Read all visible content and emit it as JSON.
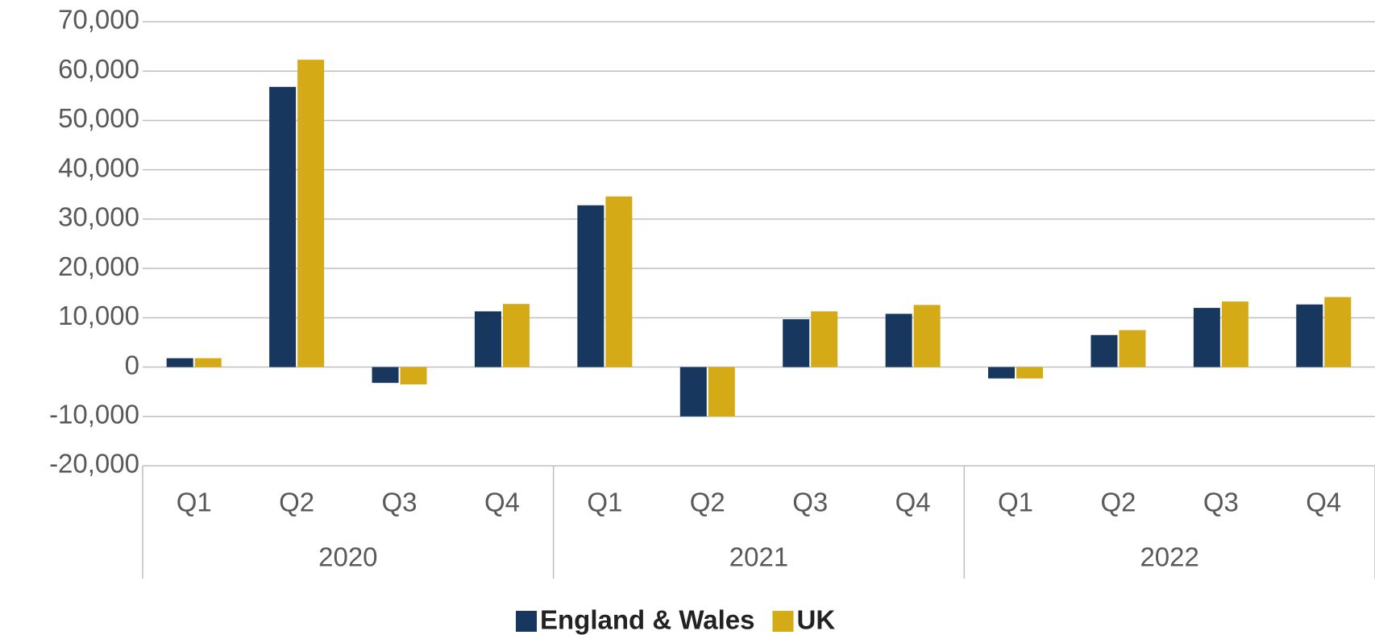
{
  "chart_data": {
    "type": "bar",
    "categories": [
      "Q1",
      "Q2",
      "Q3",
      "Q4",
      "Q1",
      "Q2",
      "Q3",
      "Q4",
      "Q1",
      "Q2",
      "Q3",
      "Q4"
    ],
    "groups": [
      "2020",
      "2021",
      "2022"
    ],
    "series": [
      {
        "name": "England & Wales",
        "color": "#17375e",
        "values": [
          1800,
          56800,
          -3200,
          11300,
          32800,
          -10000,
          9700,
          10800,
          -2300,
          6500,
          12000,
          12700
        ]
      },
      {
        "name": "UK",
        "color": "#d4aa17",
        "values": [
          1800,
          62300,
          -3500,
          12800,
          34600,
          -10000,
          11300,
          12600,
          -2300,
          7500,
          13300,
          14200
        ]
      }
    ],
    "ylim": [
      -20000,
      70000
    ],
    "yticks": [
      {
        "value": -20000,
        "label": "-20,000"
      },
      {
        "value": -10000,
        "label": "-10,000"
      },
      0,
      {
        "value": 10000,
        "label": "10,000"
      },
      {
        "value": 20000,
        "label": "20,000"
      },
      {
        "value": 30000,
        "label": "30,000"
      },
      {
        "value": 40000,
        "label": "40,000"
      },
      {
        "value": 50000,
        "label": "50,000"
      },
      {
        "value": 60000,
        "label": "60,000"
      },
      {
        "value": 70000,
        "label": "70,000"
      }
    ],
    "grid": true,
    "legend": "bottom"
  }
}
